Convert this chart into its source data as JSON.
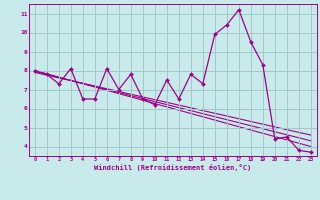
{
  "xlabel": "Windchill (Refroidissement éolien,°C)",
  "background_color": "#c8eaea",
  "grid_color": "#a0c8c8",
  "line_color": "#a0008a",
  "x_hours": [
    0,
    1,
    2,
    3,
    4,
    5,
    6,
    7,
    8,
    9,
    10,
    11,
    12,
    13,
    14,
    15,
    16,
    17,
    18,
    19,
    20,
    21,
    22,
    23
  ],
  "windchill": [
    8.0,
    7.8,
    7.3,
    8.1,
    6.5,
    6.5,
    8.1,
    7.0,
    7.8,
    6.5,
    6.2,
    7.5,
    6.5,
    7.8,
    7.3,
    9.9,
    10.4,
    11.2,
    9.5,
    8.3,
    4.4,
    4.5,
    3.8,
    3.7
  ],
  "trend1_y": [
    8.0,
    4.0
  ],
  "trend2_y": [
    7.95,
    4.3
  ],
  "trend3_y": [
    7.9,
    4.6
  ],
  "xlim": [
    -0.5,
    23.5
  ],
  "ylim": [
    3.5,
    11.5
  ],
  "yticks": [
    4,
    5,
    6,
    7,
    8,
    9,
    10,
    11
  ],
  "xticks": [
    0,
    1,
    2,
    3,
    4,
    5,
    6,
    7,
    8,
    9,
    10,
    11,
    12,
    13,
    14,
    15,
    16,
    17,
    18,
    19,
    20,
    21,
    22,
    23
  ]
}
